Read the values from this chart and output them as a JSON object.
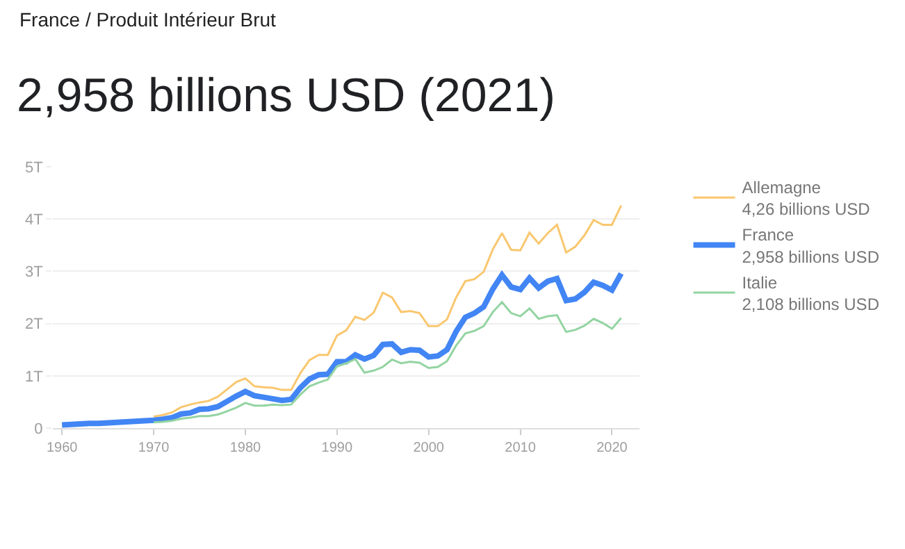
{
  "chart_data": {
    "type": "line",
    "title": "2,958 billions USD (2021)",
    "subtitle": "France / Produit Intérieur Brut",
    "x": [
      1960,
      1961,
      1962,
      1963,
      1964,
      1965,
      1966,
      1967,
      1968,
      1969,
      1970,
      1971,
      1972,
      1973,
      1974,
      1975,
      1976,
      1977,
      1978,
      1979,
      1980,
      1981,
      1982,
      1983,
      1984,
      1985,
      1986,
      1987,
      1988,
      1989,
      1990,
      1991,
      1992,
      1993,
      1994,
      1995,
      1996,
      1997,
      1998,
      1999,
      2000,
      2001,
      2002,
      2003,
      2004,
      2005,
      2006,
      2007,
      2008,
      2009,
      2010,
      2011,
      2012,
      2013,
      2014,
      2015,
      2016,
      2017,
      2018,
      2019,
      2020,
      2021
    ],
    "series": [
      {
        "name": "Allemagne",
        "color": "#f9c76f",
        "values": [
          null,
          null,
          null,
          null,
          null,
          null,
          null,
          null,
          null,
          null,
          0.22,
          0.25,
          0.3,
          0.4,
          0.45,
          0.49,
          0.52,
          0.6,
          0.74,
          0.88,
          0.95,
          0.8,
          0.78,
          0.77,
          0.73,
          0.73,
          1.05,
          1.3,
          1.4,
          1.4,
          1.77,
          1.87,
          2.13,
          2.07,
          2.21,
          2.59,
          2.5,
          2.22,
          2.24,
          2.2,
          1.95,
          1.95,
          2.08,
          2.5,
          2.81,
          2.85,
          2.99,
          3.42,
          3.73,
          3.41,
          3.4,
          3.74,
          3.53,
          3.73,
          3.89,
          3.36,
          3.47,
          3.69,
          3.98,
          3.89,
          3.89,
          4.26
        ]
      },
      {
        "name": "France",
        "color": "#4285f4",
        "values": [
          0.06,
          0.07,
          0.08,
          0.09,
          0.09,
          0.1,
          0.11,
          0.12,
          0.13,
          0.14,
          0.15,
          0.17,
          0.2,
          0.27,
          0.29,
          0.36,
          0.37,
          0.41,
          0.51,
          0.61,
          0.7,
          0.62,
          0.59,
          0.56,
          0.53,
          0.55,
          0.77,
          0.94,
          1.02,
          1.03,
          1.27,
          1.27,
          1.4,
          1.32,
          1.39,
          1.6,
          1.61,
          1.45,
          1.5,
          1.49,
          1.36,
          1.38,
          1.5,
          1.85,
          2.12,
          2.2,
          2.32,
          2.66,
          2.93,
          2.7,
          2.65,
          2.87,
          2.68,
          2.81,
          2.86,
          2.44,
          2.47,
          2.6,
          2.79,
          2.73,
          2.64,
          2.958
        ]
      },
      {
        "name": "Italie",
        "color": "#93d4a2",
        "values": [
          null,
          null,
          null,
          null,
          null,
          null,
          null,
          null,
          null,
          null,
          0.11,
          0.12,
          0.14,
          0.18,
          0.2,
          0.23,
          0.23,
          0.26,
          0.32,
          0.39,
          0.48,
          0.43,
          0.43,
          0.45,
          0.44,
          0.45,
          0.64,
          0.8,
          0.87,
          0.93,
          1.18,
          1.24,
          1.32,
          1.06,
          1.1,
          1.17,
          1.31,
          1.24,
          1.27,
          1.25,
          1.15,
          1.17,
          1.28,
          1.58,
          1.81,
          1.86,
          1.95,
          2.22,
          2.41,
          2.2,
          2.14,
          2.29,
          2.09,
          2.14,
          2.16,
          1.84,
          1.88,
          1.96,
          2.09,
          2.01,
          1.9,
          2.108
        ]
      }
    ],
    "annotations": [
      "4,26 billions USD",
      "2,958 billions USD",
      "2,108 billions USD"
    ],
    "xlim": [
      1959,
      2023
    ],
    "xticks": [
      1960,
      1970,
      1980,
      1990,
      2000,
      2010,
      2020
    ],
    "ylim": [
      0,
      5
    ],
    "yticks": [
      0,
      {
        "value": 1,
        "label": "1T"
      },
      {
        "value": 2,
        "label": "2T"
      },
      {
        "value": 3,
        "label": "3T"
      },
      {
        "value": 4,
        "label": "4T"
      },
      {
        "value": 5,
        "label": "5T"
      }
    ],
    "grid": "y",
    "legend": "right",
    "marker": "none",
    "line_style": "solid"
  }
}
